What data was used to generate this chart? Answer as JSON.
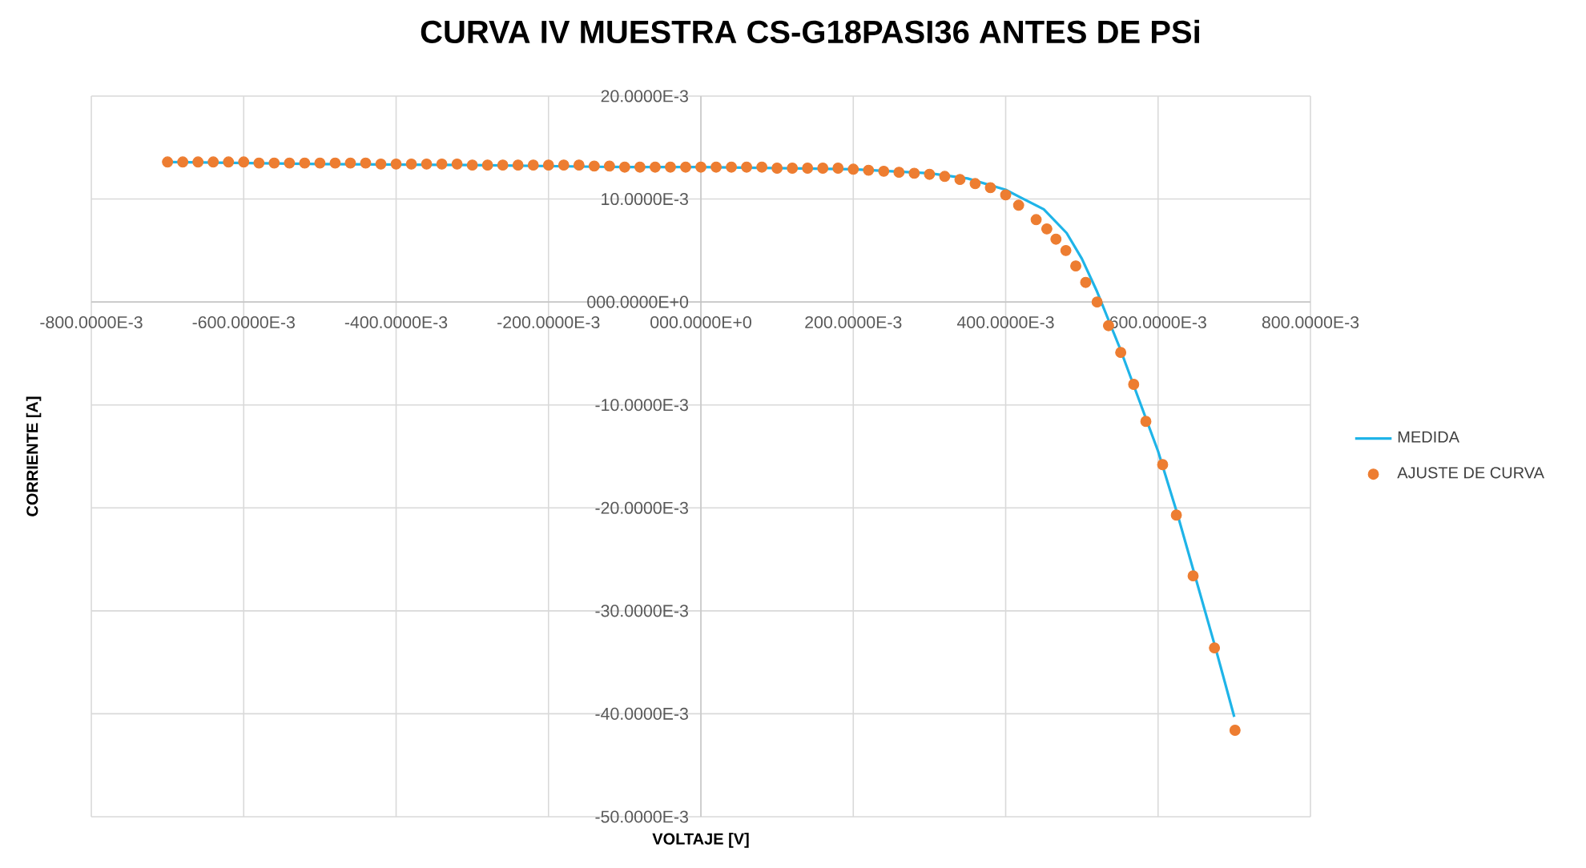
{
  "chart_data": {
    "type": "scatter",
    "title": "CURVA IV MUESTRA CS-G18PASI36 ANTES DE PSi",
    "xlabel": "VOLTAJE [V]",
    "ylabel": "CORRIENTE [A]",
    "xlim": [
      -0.8,
      0.8
    ],
    "ylim": [
      -0.05,
      0.02
    ],
    "xticks": [
      {
        "value": -0.8,
        "label": "-800.0000E-3"
      },
      {
        "value": -0.6,
        "label": "-600.0000E-3"
      },
      {
        "value": -0.4,
        "label": "-400.0000E-3"
      },
      {
        "value": -0.2,
        "label": "-200.0000E-3"
      },
      {
        "value": 0,
        "label": "000.0000E+0"
      },
      {
        "value": 0.2,
        "label": "200.0000E-3"
      },
      {
        "value": 0.4,
        "label": "400.0000E-3"
      },
      {
        "value": 0.6,
        "label": "600.0000E-3"
      },
      {
        "value": 0.8,
        "label": "800.0000E-3"
      }
    ],
    "yticks": [
      {
        "value": 0.02,
        "label": "20.0000E-3"
      },
      {
        "value": 0.01,
        "label": "10.0000E-3"
      },
      {
        "value": 0,
        "label": "000.0000E+0"
      },
      {
        "value": -0.01,
        "label": "-10.0000E-3"
      },
      {
        "value": -0.02,
        "label": "-20.0000E-3"
      },
      {
        "value": -0.03,
        "label": "-30.0000E-3"
      },
      {
        "value": -0.04,
        "label": "-40.0000E-3"
      },
      {
        "value": -0.05,
        "label": "-50.0000E-3"
      }
    ],
    "grid": true,
    "legend": "right",
    "series": [
      {
        "name": "MEDIDA",
        "type": "line",
        "color": "#1fb4e8",
        "marker": "none",
        "x": [
          -0.7,
          -0.5,
          -0.3,
          -0.1,
          0,
          0.1,
          0.2,
          0.3,
          0.35,
          0.4,
          0.45,
          0.48,
          0.5,
          0.52,
          0.55,
          0.575,
          0.6,
          0.625,
          0.65,
          0.675,
          0.7
        ],
        "values": [
          0.0136,
          0.0134,
          0.0133,
          0.0131,
          0.0131,
          0.013,
          0.0129,
          0.0125,
          0.012,
          0.0109,
          0.009,
          0.0067,
          0.0042,
          0.001,
          -0.0045,
          -0.0095,
          -0.0145,
          -0.0205,
          -0.027,
          -0.0335,
          -0.0403
        ]
      },
      {
        "name": "AJUSTE DE CURVA",
        "color": "#ed7d31",
        "marker": "circle",
        "x": [
          -0.7,
          -0.68,
          -0.66,
          -0.64,
          -0.62,
          -0.6,
          -0.58,
          -0.56,
          -0.54,
          -0.52,
          -0.5,
          -0.48,
          -0.46,
          -0.44,
          -0.42,
          -0.4,
          -0.38,
          -0.36,
          -0.34,
          -0.32,
          -0.3,
          -0.28,
          -0.26,
          -0.24,
          -0.22,
          -0.2,
          -0.18,
          -0.16,
          -0.14,
          -0.12,
          -0.1,
          -0.08,
          -0.06,
          -0.04,
          -0.02,
          0,
          0.02,
          0.04,
          0.06,
          0.08,
          0.1,
          0.12,
          0.14,
          0.16,
          0.18,
          0.2,
          0.22,
          0.24,
          0.26,
          0.28,
          0.3,
          0.32,
          0.34,
          0.36,
          0.38,
          0.4,
          0.417,
          0.44,
          0.454,
          0.466,
          0.479,
          0.492,
          0.505,
          0.52,
          0.535,
          0.551,
          0.568,
          0.584,
          0.606,
          0.624,
          0.646,
          0.674,
          0.701
        ],
        "values": [
          0.0136,
          0.0136,
          0.0136,
          0.0136,
          0.0136,
          0.0136,
          0.0135,
          0.0135,
          0.0135,
          0.0135,
          0.0135,
          0.0135,
          0.0135,
          0.0135,
          0.0134,
          0.0134,
          0.0134,
          0.0134,
          0.0134,
          0.0134,
          0.0133,
          0.0133,
          0.0133,
          0.0133,
          0.0133,
          0.0133,
          0.0133,
          0.0133,
          0.0132,
          0.0132,
          0.0131,
          0.0131,
          0.0131,
          0.0131,
          0.0131,
          0.0131,
          0.0131,
          0.0131,
          0.0131,
          0.0131,
          0.013,
          0.013,
          0.013,
          0.013,
          0.013,
          0.0129,
          0.0128,
          0.0127,
          0.0126,
          0.0125,
          0.0124,
          0.0122,
          0.0119,
          0.0115,
          0.0111,
          0.0104,
          0.0094,
          0.008,
          0.0071,
          0.0061,
          0.005,
          0.0035,
          0.0019,
          0,
          -0.0023,
          -0.0049,
          -0.008,
          -0.0116,
          -0.0158,
          -0.0207,
          -0.0266,
          -0.0336,
          -0.0416
        ]
      }
    ]
  }
}
